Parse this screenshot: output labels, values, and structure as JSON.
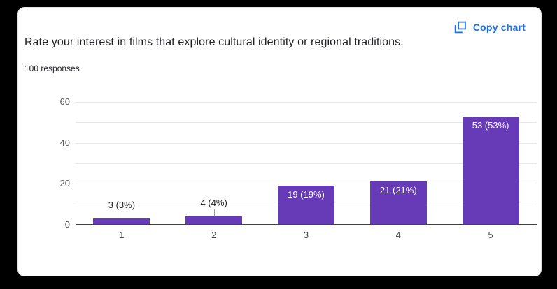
{
  "card": {
    "title": "Rate your interest in films that explore cultural identity or regional traditions.",
    "responses_label": "100 responses",
    "copy_button": {
      "label": "Copy chart"
    }
  },
  "colors": {
    "background": "#000000",
    "card_bg": "#ffffff",
    "bar": "#673ab7",
    "accent_blue": "#1a73e8",
    "gridline": "#e8e8e8",
    "axis_line": "#424242",
    "axis_text": "#5c5c5c",
    "callout_text": "#212121",
    "inner_label_text": "#ffffff"
  },
  "icons": [
    {
      "name": "copy-chart-icon",
      "meaning": "copy chart to clipboard"
    }
  ],
  "chart_data": {
    "type": "bar",
    "title": "Rate your interest in films that explore cultural identity or regional traditions.",
    "subtitle": "100 responses",
    "categories": [
      "1",
      "2",
      "3",
      "4",
      "5"
    ],
    "values": [
      3,
      4,
      19,
      21,
      53
    ],
    "value_labels": [
      "3 (3%)",
      "4 (4%)",
      "19 (19%)",
      "21 (21%)",
      "53 (53%)"
    ],
    "xlabel": "",
    "ylabel": "",
    "ylim": [
      0,
      60
    ],
    "yticks": [
      0,
      20,
      40,
      60
    ],
    "minor_gridlines": [
      10,
      30,
      50
    ],
    "grid": true,
    "legend": false
  }
}
